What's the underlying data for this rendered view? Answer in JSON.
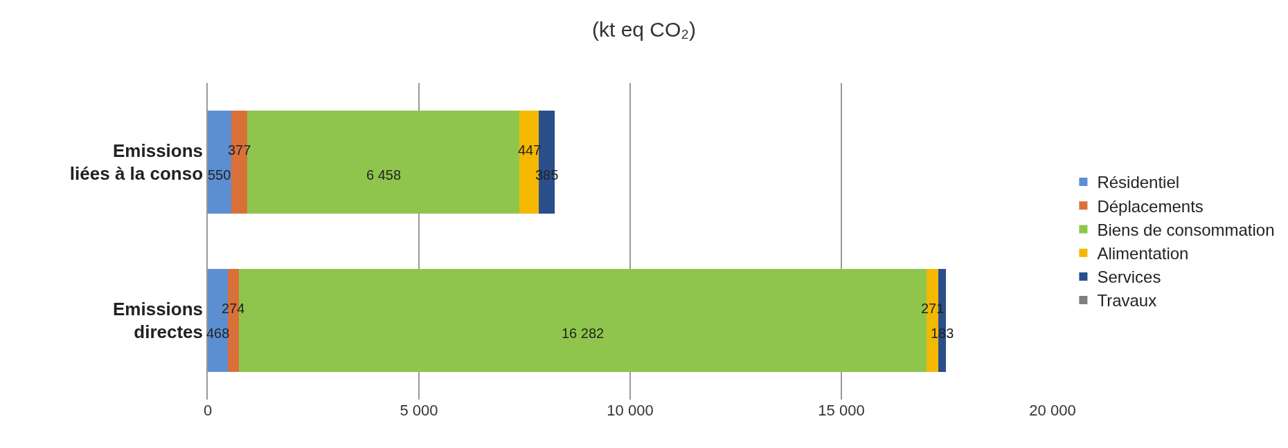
{
  "chart_data": {
    "type": "bar",
    "orientation": "horizontal",
    "stacked": true,
    "title": "(kt eq CO₂)",
    "categories": [
      "Emissions liées à la conso",
      "Emissions directes"
    ],
    "series": [
      {
        "name": "Résidentiel",
        "color": "#5b8fd1",
        "values": [
          550,
          468
        ],
        "value_labels": [
          "550",
          "468"
        ]
      },
      {
        "name": "Déplacements",
        "color": "#d9703a",
        "values": [
          377,
          274
        ],
        "value_labels": [
          "377",
          "274"
        ]
      },
      {
        "name": "Biens de consommation",
        "color": "#8fc54d",
        "values": [
          6458,
          16282
        ],
        "value_labels": [
          "6 458",
          "16 282"
        ]
      },
      {
        "name": "Alimentation",
        "color": "#f5b800",
        "values": [
          447,
          271
        ],
        "value_labels": [
          "447",
          "271"
        ]
      },
      {
        "name": "Services",
        "color": "#2a4f8a",
        "values": [
          385,
          183
        ],
        "value_labels": [
          "385",
          "183"
        ]
      },
      {
        "name": "Travaux",
        "color": "#7f7f7f",
        "values": [
          null,
          null
        ]
      }
    ],
    "xlim": [
      0,
      20000
    ],
    "xticks": [
      0,
      {
        "value": 5000,
        "label": "5 000"
      },
      {
        "value": 10000,
        "label": "10 000"
      },
      {
        "value": 15000,
        "label": "15 000"
      },
      {
        "value": 20000,
        "label": "20 000"
      }
    ],
    "grid": "x",
    "legend": "right"
  }
}
